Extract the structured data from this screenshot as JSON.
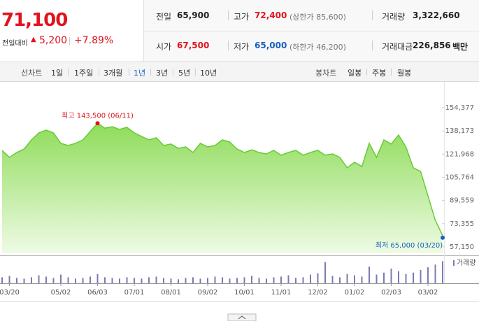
{
  "header": {
    "price": "71,100",
    "change_label": "전일대비",
    "change": "5,200",
    "change_pct": "+7.89%",
    "stats": [
      [
        {
          "label": "전일",
          "value": "65,900"
        },
        {
          "label": "고가",
          "value": "72,400",
          "sub": "(상한가 85,600)"
        },
        {
          "label": "거래량",
          "value": "3,322,660"
        }
      ],
      [
        {
          "label": "시가",
          "value": "67,500"
        },
        {
          "label": "저가",
          "value": "65,000",
          "sub": "(하한가 46,200)"
        },
        {
          "label": "거래대금",
          "value": "226,856",
          "unit": "백만"
        }
      ]
    ]
  },
  "tabs": {
    "line_label": "선차트",
    "line": [
      "1일",
      "1주일",
      "3개월",
      "1년",
      "3년",
      "5년",
      "10년"
    ],
    "candle_label": "봉차트",
    "candle": [
      "일봉",
      "주봉",
      "월봉"
    ]
  },
  "chart_data": {
    "type": "area",
    "categories": [
      null,
      "03/20",
      null,
      null,
      null,
      null,
      null,
      null,
      "05/02",
      null,
      null,
      null,
      null,
      "06/03",
      null,
      null,
      null,
      null,
      "07/01",
      null,
      null,
      null,
      null,
      "08/01",
      null,
      null,
      null,
      null,
      "09/02",
      null,
      null,
      null,
      null,
      "10/01",
      null,
      null,
      null,
      null,
      "11/01",
      null,
      null,
      null,
      null,
      "12/02",
      null,
      null,
      null,
      null,
      "01/02",
      null,
      null,
      null,
      null,
      "02/03",
      null,
      null,
      null,
      null,
      "03/02",
      null,
      null
    ],
    "series": [
      {
        "color": "#66cc33",
        "values": [
          124500,
          119700,
          123100,
          125500,
          131900,
          136800,
          138700,
          136800,
          129500,
          128000,
          129500,
          131900,
          137800,
          143500,
          140100,
          141100,
          139200,
          140700,
          136800,
          134300,
          131900,
          133400,
          128000,
          129000,
          126000,
          127000,
          123100,
          129500,
          127000,
          128000,
          131900,
          130400,
          125500,
          123100,
          125000,
          123100,
          122100,
          124600,
          121200,
          123100,
          124600,
          121200,
          123100,
          124600,
          121200,
          122100,
          119700,
          112400,
          116300,
          113300,
          129500,
          119700,
          131900,
          129000,
          135300,
          127000,
          112400,
          109900,
          92800,
          75700,
          65000
        ]
      },
      {
        "name": "거래량",
        "color": "#7b7bb5",
        "axis": "y2",
        "values": [
          900000,
          1100000,
          800000,
          700000,
          900000,
          1200000,
          1000000,
          800000,
          1300000,
          900000,
          700000,
          800000,
          1000000,
          1400000,
          900000,
          800000,
          700000,
          900000,
          800000,
          700000,
          900000,
          1000000,
          800000,
          700000,
          600000,
          800000,
          900000,
          700000,
          800000,
          1000000,
          900000,
          700000,
          800000,
          900000,
          1100000,
          800000,
          700000,
          900000,
          1000000,
          1200000,
          800000,
          900000,
          1300000,
          1500000,
          3200000,
          1100000,
          900000,
          1400000,
          1200000,
          1000000,
          2500000,
          1300000,
          1600000,
          2200000,
          1800000,
          1400000,
          1600000,
          2000000,
          2400000,
          2800000,
          3322660
        ]
      }
    ],
    "ylim": [
      52750,
      168550
    ],
    "yticks": [
      {
        "value": 154377,
        "label": "154,377"
      },
      {
        "value": 138173,
        "label": "138,173"
      },
      {
        "value": 121968,
        "label": "121,968"
      },
      {
        "value": 105764,
        "label": "105,764"
      },
      {
        "value": 89559,
        "label": "89,559"
      },
      {
        "value": 73355,
        "label": "73,355"
      },
      {
        "value": 57150,
        "label": "57,150"
      }
    ],
    "y2lim": [
      0,
      4000000
    ],
    "grid": false,
    "annotations": [
      {
        "text": "최고 143,500 (06/11)",
        "color": "#e0141e"
      },
      {
        "text": "최저 65,000 (03/20)",
        "color": "#1a5fbf"
      }
    ]
  }
}
